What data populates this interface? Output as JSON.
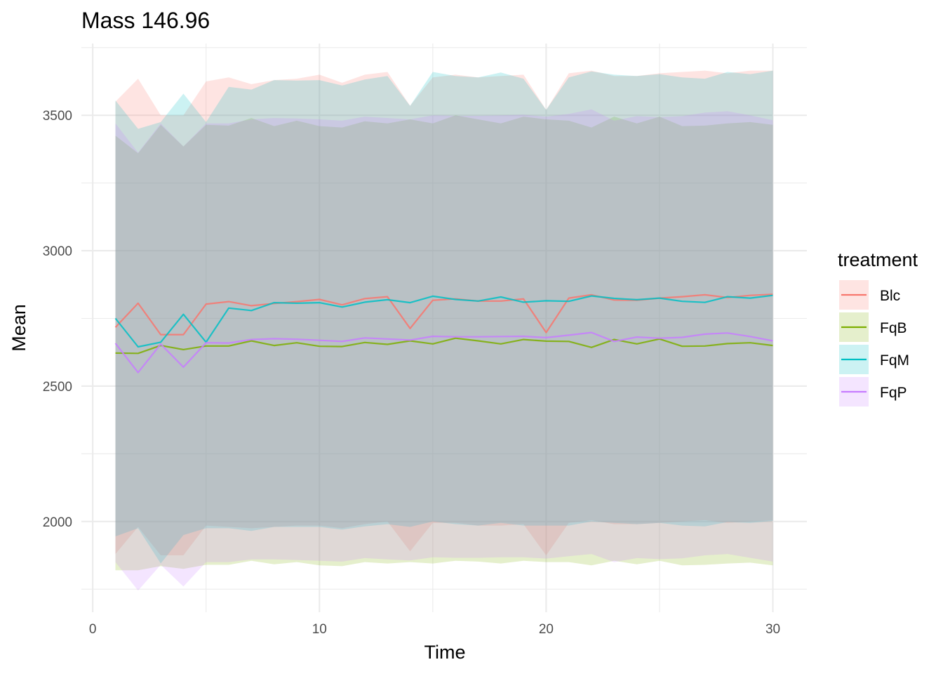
{
  "chart_data": {
    "type": "area",
    "title": "Mass 146.96",
    "xlabel": "Time",
    "ylabel": "Mean",
    "xlim": [
      -0.5,
      31.5
    ],
    "ylim": [
      1665,
      3765
    ],
    "x_ticks": [
      0,
      10,
      20,
      30
    ],
    "x_tick_labels": [
      "0",
      "10",
      "20",
      "30"
    ],
    "x_minor_ticks": [
      5,
      15,
      25
    ],
    "y_ticks": [
      2000,
      2500,
      3000,
      3500
    ],
    "y_tick_labels": [
      "2000",
      "2500",
      "3000",
      "3500"
    ],
    "y_minor_ticks": [
      1750,
      2250,
      2750,
      3250,
      3750
    ],
    "grid": true,
    "legend": {
      "title": "treatment",
      "position": "right"
    },
    "x": [
      1,
      2,
      3,
      4,
      5,
      6,
      7,
      8,
      9,
      10,
      11,
      12,
      13,
      14,
      15,
      16,
      17,
      18,
      19,
      20,
      21,
      22,
      23,
      24,
      25,
      26,
      27,
      28,
      29,
      30
    ],
    "series": [
      {
        "name": "Blc",
        "color": "#F8766D",
        "mean": [
          2717,
          2806,
          2690,
          2690,
          2803,
          2812,
          2797,
          2805,
          2812,
          2820,
          2800,
          2823,
          2830,
          2713,
          2817,
          2822,
          2814,
          2814,
          2822,
          2698,
          2825,
          2837,
          2818,
          2817,
          2825,
          2830,
          2837,
          2827,
          2835,
          2839
        ],
        "upper": [
          3550,
          3635,
          3500,
          3500,
          3625,
          3640,
          3615,
          3630,
          3635,
          3650,
          3620,
          3650,
          3660,
          3535,
          3640,
          3650,
          3640,
          3645,
          3650,
          3520,
          3655,
          3665,
          3645,
          3645,
          3655,
          3660,
          3665,
          3655,
          3665,
          3665
        ],
        "lower": [
          1880,
          1980,
          1875,
          1875,
          1985,
          1980,
          1975,
          1980,
          1985,
          1985,
          1975,
          1990,
          2000,
          1890,
          1995,
          1995,
          1985,
          1985,
          1990,
          1875,
          1995,
          2005,
          1990,
          1990,
          1995,
          2000,
          2005,
          1995,
          2000,
          2005
        ]
      },
      {
        "name": "FqB",
        "color": "#7CAE00",
        "mean": [
          2622,
          2621,
          2650,
          2635,
          2648,
          2648,
          2667,
          2650,
          2660,
          2647,
          2646,
          2661,
          2654,
          2667,
          2656,
          2677,
          2667,
          2656,
          2672,
          2666,
          2665,
          2643,
          2672,
          2656,
          2674,
          2647,
          2648,
          2657,
          2660,
          2650
        ],
        "upper": [
          3425,
          3360,
          3465,
          3385,
          3465,
          3462,
          3490,
          3460,
          3480,
          3460,
          3455,
          3478,
          3470,
          3485,
          3470,
          3500,
          3485,
          3470,
          3495,
          3485,
          3480,
          3455,
          3495,
          3470,
          3495,
          3460,
          3462,
          3470,
          3475,
          3465
        ],
        "lower": [
          1820,
          1820,
          1835,
          1825,
          1840,
          1840,
          1855,
          1842,
          1850,
          1838,
          1835,
          1850,
          1845,
          1850,
          1845,
          1855,
          1852,
          1845,
          1855,
          1850,
          1850,
          1838,
          1855,
          1842,
          1855,
          1838,
          1840,
          1845,
          1848,
          1838
        ]
      },
      {
        "name": "FqM",
        "color": "#00BFC4",
        "mean": [
          2750,
          2645,
          2662,
          2765,
          2662,
          2788,
          2779,
          2808,
          2806,
          2808,
          2792,
          2810,
          2819,
          2808,
          2832,
          2820,
          2814,
          2829,
          2810,
          2815,
          2813,
          2833,
          2824,
          2819,
          2825,
          2813,
          2809,
          2830,
          2825,
          2835
        ],
        "upper": [
          3555,
          3450,
          3475,
          3580,
          3475,
          3605,
          3595,
          3630,
          3628,
          3630,
          3610,
          3632,
          3645,
          3535,
          3660,
          3645,
          3640,
          3658,
          3635,
          3520,
          3640,
          3662,
          3650,
          3645,
          3652,
          3640,
          3635,
          3660,
          3652,
          3665
        ],
        "lower": [
          1945,
          1975,
          1845,
          1950,
          1975,
          1975,
          1965,
          1980,
          1980,
          1980,
          1970,
          1982,
          1990,
          1980,
          2000,
          1990,
          1985,
          1995,
          1985,
          1985,
          1985,
          2000,
          1995,
          1990,
          1995,
          1985,
          1982,
          1998,
          1995,
          2002
        ]
      },
      {
        "name": "FqP",
        "color": "#C77CFF",
        "mean": [
          2658,
          2550,
          2655,
          2570,
          2660,
          2659,
          2672,
          2675,
          2673,
          2669,
          2665,
          2678,
          2674,
          2670,
          2684,
          2682,
          2682,
          2683,
          2684,
          2679,
          2688,
          2698,
          2665,
          2681,
          2677,
          2680,
          2692,
          2696,
          2683,
          2667
        ],
        "upper": [
          3470,
          3362,
          3470,
          3385,
          3470,
          3470,
          3485,
          3490,
          3488,
          3485,
          3480,
          3495,
          3490,
          3485,
          3500,
          3498,
          3498,
          3500,
          3502,
          3495,
          3505,
          3522,
          3480,
          3497,
          3493,
          3497,
          3510,
          3515,
          3500,
          3482
        ],
        "lower": [
          1850,
          1745,
          1840,
          1760,
          1850,
          1850,
          1860,
          1860,
          1858,
          1855,
          1852,
          1865,
          1860,
          1856,
          1868,
          1866,
          1866,
          1868,
          1868,
          1863,
          1872,
          1880,
          1850,
          1865,
          1861,
          1864,
          1875,
          1880,
          1866,
          1852
        ]
      }
    ]
  }
}
